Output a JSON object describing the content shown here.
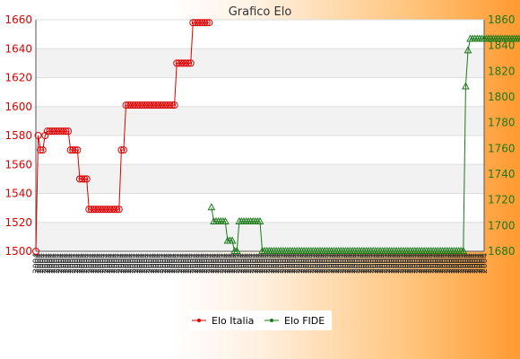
{
  "colors": {
    "series_italia": "#dd0000",
    "series_fide": "#1a7a1a",
    "band": "#f2f2f2",
    "plot_bg": "#ffffff",
    "grid": "#dddddd",
    "axis": "#555555"
  },
  "chart_data": {
    "type": "line",
    "title": "Grafico Elo",
    "grid": true,
    "legend_position": "bottom",
    "left_axis": {
      "ylim": [
        1500,
        1660
      ],
      "ticks": [
        "1500",
        "1520",
        "1540",
        "1560",
        "1580",
        "1600",
        "1620",
        "1640",
        "1660"
      ]
    },
    "right_axis": {
      "ylim": [
        1680,
        1860
      ],
      "ticks": [
        "1680",
        "1700",
        "1720",
        "1740",
        "1760",
        "1780",
        "1800",
        "1820",
        "1840",
        "1860"
      ]
    },
    "x_tick_labels": [
      "2004",
      "2004",
      "2004",
      "2004",
      "2004",
      "2004",
      "2004",
      "2004",
      "2004",
      "2004",
      "2004",
      "2004",
      "2004",
      "2004",
      "2004",
      "2004",
      "2004",
      "2004",
      "2004",
      "2004",
      "2004",
      "2004",
      "2004",
      "2004",
      "2004",
      "2004",
      "2004",
      "2004",
      "2004",
      "2004",
      "2004",
      "2004",
      "2004",
      "2004",
      "2004",
      "2004",
      "2004",
      "2004",
      "2004",
      "2004",
      "2004",
      "2004",
      "2004",
      "2004",
      "2004",
      "2004",
      "2004",
      "2004",
      "2004",
      "2004",
      "2004",
      "2004",
      "2004",
      "2004",
      "2004",
      "2004",
      "2004",
      "2004",
      "2004",
      "2004",
      "2004",
      "2004",
      "2004",
      "2004",
      "2004",
      "2004",
      "2004",
      "2004",
      "2004",
      "2004",
      "2004",
      "2004",
      "2004",
      "2004",
      "2004",
      "2004",
      "2004",
      "2004",
      "2004",
      "2004",
      "2004",
      "2004",
      "2004",
      "2004",
      "2004",
      "2004",
      "2004",
      "2004",
      "2004",
      "2004",
      "2004",
      "2004",
      "2004",
      "2004",
      "2004",
      "2004",
      "2004",
      "2004",
      "2004",
      "2004",
      "2004",
      "2004",
      "2004",
      "2004",
      "2004",
      "2004",
      "2004",
      "2004",
      "2004",
      "2004",
      "2004",
      "2004",
      "2004",
      "2004",
      "2004",
      "2004",
      "2004",
      "2004",
      "2004",
      "2004",
      "2004",
      "2004",
      "2004",
      "2004",
      "2004",
      "2004",
      "2004",
      "2004",
      "2004",
      "2004",
      "2004",
      "2004",
      "2004",
      "2004",
      "2004",
      "2004",
      "2004",
      "2004",
      "2004",
      "2004",
      "2004",
      "2004",
      "2004",
      "2004",
      "2004",
      "2004",
      "2004",
      "2004",
      "2004",
      "2004",
      "2004",
      "2004",
      "2004",
      "2004",
      "2004",
      "2004",
      "2004",
      "2004",
      "2004",
      "2004",
      "2004",
      "2004",
      "2004",
      "2004",
      "2004",
      "2004",
      "2004",
      "2004",
      "2004",
      "2004",
      "2004",
      "2004",
      "2004",
      "2004",
      "2004",
      "2004",
      "2004",
      "2004",
      "2004",
      "2004",
      "2004",
      "2004",
      "2004",
      "2004",
      "2004",
      "2004",
      "2004",
      "2004",
      "2004",
      "2004",
      "2004",
      "2004",
      "2004",
      "2004",
      "2004"
    ],
    "legend": [
      "Elo Italia",
      "Elo FIDE"
    ],
    "series": [
      {
        "name": "Elo Italia",
        "axis": "left",
        "values": [
          1500,
          1580,
          1570,
          1570,
          1580,
          1583,
          1583,
          1583,
          1583,
          1583,
          1583,
          1583,
          1583,
          1583,
          1583,
          1570,
          1570,
          1570,
          1570,
          1550,
          1550,
          1550,
          1550,
          1529,
          1529,
          1529,
          1529,
          1529,
          1529,
          1529,
          1529,
          1529,
          1529,
          1529,
          1529,
          1529,
          1529,
          1570,
          1570,
          1601,
          1601,
          1601,
          1601,
          1601,
          1601,
          1601,
          1601,
          1601,
          1601,
          1601,
          1601,
          1601,
          1601,
          1601,
          1601,
          1601,
          1601,
          1601,
          1601,
          1601,
          1601,
          1630,
          1630,
          1630,
          1630,
          1630,
          1630,
          1630,
          1658,
          1658,
          1658,
          1658,
          1658,
          1658,
          1658,
          1658
        ]
      },
      {
        "name": "Elo FIDE",
        "start_index": 76,
        "axis": "right",
        "values": [
          1714,
          1703,
          1703,
          1703,
          1703,
          1703,
          1703,
          1688,
          1688,
          1688,
          1680,
          1680,
          1703,
          1703,
          1703,
          1703,
          1703,
          1703,
          1703,
          1703,
          1703,
          1703,
          1680,
          1680,
          1680,
          1680,
          1680,
          1680,
          1680,
          1680,
          1680,
          1680,
          1680,
          1680,
          1680,
          1680,
          1680,
          1680,
          1680,
          1680,
          1680,
          1680,
          1680,
          1680,
          1680,
          1680,
          1680,
          1680,
          1680,
          1680,
          1680,
          1680,
          1680,
          1680,
          1680,
          1680,
          1680,
          1680,
          1680,
          1680,
          1680,
          1680,
          1680,
          1680,
          1680,
          1680,
          1680,
          1680,
          1680,
          1680,
          1680,
          1680,
          1680,
          1680,
          1680,
          1680,
          1680,
          1680,
          1680,
          1680,
          1680,
          1680,
          1680,
          1680,
          1680,
          1680,
          1680,
          1680,
          1680,
          1680,
          1680,
          1680,
          1680,
          1680,
          1680,
          1680,
          1680,
          1680,
          1680,
          1680,
          1680,
          1680,
          1680,
          1680,
          1680,
          1680,
          1680,
          1680,
          1680,
          1680,
          1808,
          1836,
          1845,
          1845,
          1845,
          1845,
          1845,
          1845,
          1845,
          1845,
          1845,
          1845,
          1845,
          1845,
          1845,
          1845,
          1845,
          1845,
          1845,
          1845,
          1845,
          1845,
          1845,
          1845,
          1845,
          1845,
          1845,
          1845,
          1845,
          1845,
          1845,
          1845,
          1845,
          1845,
          1845,
          1845,
          1845,
          1845,
          1845,
          1845,
          1845,
          1845
        ]
      }
    ]
  }
}
